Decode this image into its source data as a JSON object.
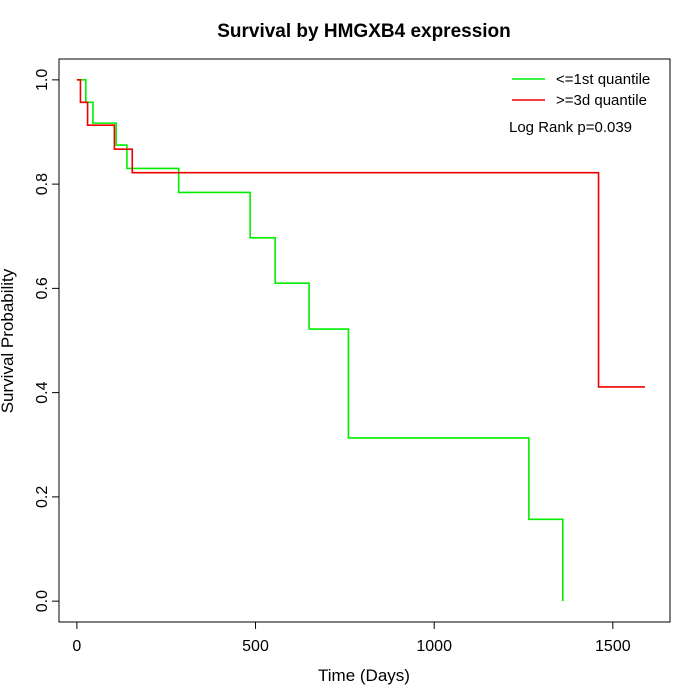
{
  "chart_data": {
    "type": "line",
    "title": "Survival by HMGXB4 expression",
    "xlabel": "Time (Days)",
    "ylabel": "Survival Probability",
    "xlim": [
      -50,
      1660
    ],
    "ylim": [
      -0.04,
      1.04
    ],
    "xticks": [
      0,
      500,
      1000,
      1500
    ],
    "yticks": [
      0.0,
      0.2,
      0.4,
      0.6,
      0.8,
      1.0
    ],
    "xtick_labels": [
      "0",
      "500",
      "1000",
      "1500"
    ],
    "ytick_labels": [
      "0.0",
      "0.2",
      "0.4",
      "0.6",
      "0.8",
      "1.0"
    ],
    "grid": false,
    "legend_position": "top-right",
    "annotation": "Log Rank p=0.039",
    "series": [
      {
        "name": "<=1st quantile",
        "color": "#00ee00",
        "step": true,
        "x": [
          0,
          25,
          45,
          110,
          140,
          285,
          485,
          555,
          650,
          760,
          1265,
          1360
        ],
        "y": [
          1.0,
          0.957,
          0.917,
          0.875,
          0.83,
          0.784,
          0.697,
          0.61,
          0.522,
          0.313,
          0.157,
          0.0
        ]
      },
      {
        "name": ">=3d quantile",
        "color": "#ee0000",
        "step": true,
        "x": [
          0,
          10,
          30,
          105,
          155,
          1460,
          1590
        ],
        "y": [
          1.0,
          0.957,
          0.913,
          0.867,
          0.822,
          0.411,
          0.411
        ]
      }
    ]
  }
}
